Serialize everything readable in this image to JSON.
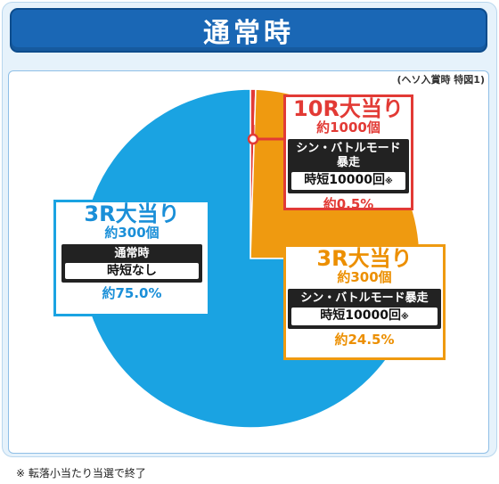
{
  "header": {
    "title": "通常時"
  },
  "note_top": "(ヘソ入賞時 特図1)",
  "footnote": "※ 転落小当たり当選で終了",
  "colors": {
    "blue": "#1aa3e2",
    "orange": "#ef9a10",
    "red": "#e23a35",
    "title_bg": "#1a67b5"
  },
  "chart_data": {
    "type": "pie",
    "slices": [
      {
        "label": "10R大当り",
        "count": "約1000個",
        "mode_label": "シン・バトルモード暴走",
        "mode_value": "時短10000回",
        "mode_mark": "※",
        "percent_label": "約0.5%",
        "value": 0.5,
        "color": "#e23a35"
      },
      {
        "label": "3R大当り",
        "count": "約300個",
        "mode_label": "シン・バトルモード暴走",
        "mode_value": "時短10000回",
        "mode_mark": "※",
        "percent_label": "約24.5%",
        "value": 24.5,
        "color": "#ef9a10"
      },
      {
        "label": "3R大当り",
        "count": "約300個",
        "mode_label": "通常時",
        "mode_value": "時短なし",
        "mode_mark": "",
        "percent_label": "約75.0%",
        "value": 75.0,
        "color": "#1aa3e2"
      }
    ]
  }
}
